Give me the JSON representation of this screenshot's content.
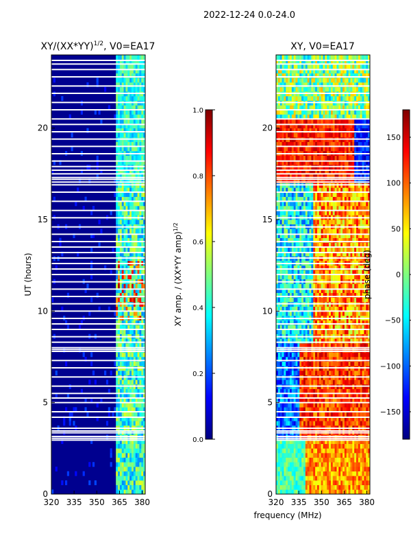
{
  "figure_title": "2022-12-24 0.0-24.0",
  "shared_xlabel": "frequency (MHz)",
  "colors": {
    "bg_blue": "#00008f",
    "flag_white": "#ffffff",
    "jet": [
      "#00007f",
      "#0000ff",
      "#007fff",
      "#00ffff",
      "#7fff7f",
      "#ffff00",
      "#ff7f00",
      "#ff0000",
      "#7f0000"
    ]
  },
  "chart_data": [
    {
      "type": "heatmap",
      "title_text": "XY/(XX*YY)",
      "title_exp": "1/2",
      "title_suffix": ", V0=EA17",
      "xlabel": "",
      "ylabel": "UT (hours)",
      "xlim": [
        320,
        382
      ],
      "ylim": [
        0,
        24
      ],
      "xticks": [
        320,
        335,
        350,
        365,
        380
      ],
      "yticks": [
        0,
        5,
        10,
        15,
        20
      ],
      "colorbar": {
        "label_text": "XY amp. / (XX*YY amp)",
        "label_exp": "1/2",
        "range": [
          0.0,
          1.0
        ],
        "ticks": [
          "0.0",
          "0.2",
          "0.4",
          "0.6",
          "0.8",
          "1.0"
        ],
        "tick_values": [
          0,
          0.2,
          0.4,
          0.6,
          0.8,
          1.0
        ],
        "colormap": "jet"
      }
    },
    {
      "type": "heatmap",
      "title_text": "XY, V0=EA17",
      "xlabel": "frequency (MHz)",
      "ylabel": "",
      "xlim": [
        320,
        382
      ],
      "ylim": [
        0,
        24
      ],
      "xticks": [
        320,
        335,
        350,
        365,
        380
      ],
      "yticks": [
        0,
        5,
        10,
        15,
        20
      ],
      "colorbar": {
        "label_text": "phase (deg)",
        "range": [
          -180,
          180
        ],
        "ticks": [
          "−150",
          "−100",
          "−50",
          "0",
          "50",
          "100",
          "150"
        ],
        "tick_values": [
          -150,
          -100,
          -50,
          0,
          50,
          100,
          150
        ],
        "colormap": "jet"
      }
    }
  ],
  "flagged_hours": [
    2.95,
    3.05,
    3.15,
    3.35,
    3.45,
    3.6,
    4.2,
    4.5,
    5.0,
    5.25,
    5.5,
    5.9,
    6.4,
    6.9,
    7.3,
    7.8,
    7.9,
    8.0,
    8.3,
    8.6,
    9.0,
    9.3,
    9.6,
    10.0,
    10.4,
    10.8,
    11.2,
    11.6,
    12.0,
    12.3,
    12.6,
    12.9,
    13.2,
    13.5,
    13.8,
    14.2,
    14.6,
    15.1,
    15.5,
    16.0,
    16.5,
    16.9,
    17.05,
    17.2,
    17.3,
    17.5,
    17.7,
    17.9,
    18.2,
    18.6,
    19.0,
    19.4,
    19.8,
    20.2,
    20.5,
    21.0,
    21.4,
    21.9,
    22.3,
    22.8,
    23.2,
    23.5,
    23.7
  ]
}
